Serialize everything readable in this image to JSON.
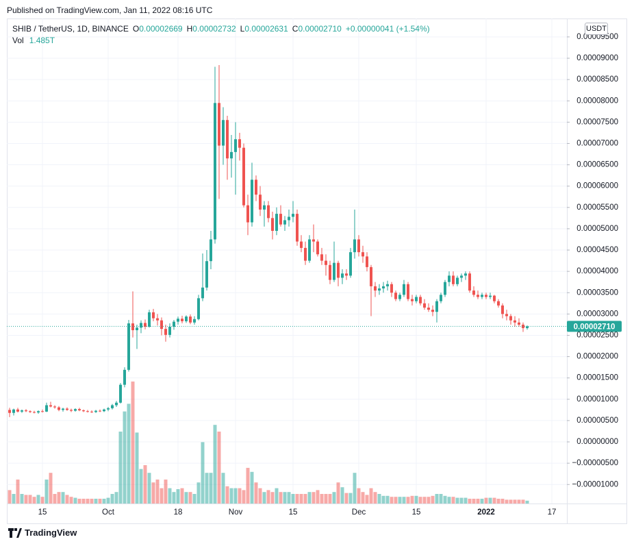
{
  "header": {
    "published": "Published on TradingView.com, Jan 11, 2022 08:16 UTC"
  },
  "chart_data": {
    "type": "candlestick",
    "symbol": "SHIB / TetherUS, 1D, BINANCE",
    "ohlc_legend": [
      {
        "key": "O",
        "value": "0.00002669"
      },
      {
        "key": "H",
        "value": "0.00002732"
      },
      {
        "key": "L",
        "value": "0.00002631"
      },
      {
        "key": "C",
        "value": "0.00002710"
      }
    ],
    "change": "+0.00000041 (+1.54%)",
    "volume_title": "Vol",
    "volume_last": "1.485T",
    "currency": "USDT",
    "last_price_label": "0.00002710",
    "up_color": "#26a69a",
    "down_color": "#ef5350",
    "grid": true,
    "categories": [
      null,
      null,
      null,
      null,
      null,
      null,
      null,
      null,
      "15",
      null,
      null,
      null,
      null,
      null,
      null,
      null,
      null,
      null,
      null,
      null,
      null,
      null,
      null,
      null,
      "Oct",
      null,
      null,
      null,
      null,
      null,
      null,
      null,
      null,
      null,
      null,
      null,
      null,
      null,
      null,
      null,
      null,
      "18",
      null,
      null,
      null,
      null,
      null,
      null,
      null,
      null,
      null,
      null,
      null,
      null,
      null,
      "Nov",
      null,
      null,
      null,
      null,
      null,
      null,
      null,
      null,
      null,
      null,
      null,
      null,
      null,
      "15",
      null,
      null,
      null,
      null,
      null,
      null,
      null,
      null,
      null,
      null,
      null,
      null,
      null,
      null,
      null,
      "Dec",
      null,
      null,
      null,
      null,
      null,
      null,
      null,
      null,
      null,
      null,
      null,
      null,
      null,
      "15",
      null,
      null,
      null,
      null,
      null,
      null,
      null,
      null,
      null,
      null,
      null,
      null,
      null,
      null,
      null,
      null,
      "2022",
      null,
      null,
      null,
      null,
      null,
      null,
      null,
      null,
      null,
      null,
      null,
      null,
      null,
      null,
      null,
      "17"
    ],
    "open": [
      7.5e-06,
      6.8e-06,
      7.6e-06,
      7.1e-06,
      7.4e-06,
      7.2e-06,
      7e-06,
      6.9e-06,
      7.2e-06,
      7.1e-06,
      8.6e-06,
      8.3e-06,
      8.1e-06,
      7.5e-06,
      7.8e-06,
      7.5e-06,
      7.3e-06,
      7.7e-06,
      7.4e-06,
      7.2e-06,
      7.1e-06,
      7e-06,
      7.3e-06,
      7.2e-06,
      7.6e-06,
      7.9e-06,
      8.6e-06,
      9.2e-06,
      1.34e-05,
      1.69e-05,
      2.78e-05,
      2.62e-05,
      2.68e-05,
      2.79e-05,
      2.7e-05,
      3.04e-05,
      2.9e-05,
      2.85e-05,
      2.65e-05,
      2.51e-05,
      2.7e-05,
      2.82e-05,
      2.89e-05,
      2.83e-05,
      2.94e-05,
      2.8e-05,
      2.88e-05,
      3.37e-05,
      3.62e-05,
      4.24e-05,
      4.75e-05,
      7.95e-05,
      6.95e-05,
      7.55e-05,
      6.65e-05,
      6.8e-05,
      7.1e-05,
      6.9e-05,
      5.55e-05,
      5.15e-05,
      6.15e-05,
      5.8e-05,
      5.45e-05,
      5.55e-05,
      5.25e-05,
      4.95e-05,
      5.35e-05,
      5.1e-05,
      5.2e-05,
      5.28e-05,
      5.35e-05,
      4.7e-05,
      4.55e-05,
      4.25e-05,
      4.75e-05,
      4.7e-05,
      4.4e-05,
      4.25e-05,
      4.15e-05,
      3.8e-05,
      4.2e-05,
      3.85e-05,
      3.95e-05,
      3.9e-05,
      4.45e-05,
      4.75e-05,
      4.45e-05,
      4.35e-05,
      4.1e-05,
      3.65e-05,
      3.55e-05,
      3.6e-05,
      3.65e-05,
      3.7e-05,
      3.5e-05,
      3.35e-05,
      3.45e-05,
      3.7e-05,
      3.35e-05,
      3.3e-05,
      3.4e-05,
      3.25e-05,
      3.15e-05,
      3.1e-05,
      3.05e-05,
      3.3e-05,
      3.45e-05,
      3.75e-05,
      3.9e-05,
      3.7e-05,
      3.85e-05,
      3.9e-05,
      3.95e-05,
      3.55e-05,
      3.45e-05,
      3.4e-05,
      3.45e-05,
      3.4e-05,
      3.43e-05,
      3.3e-05,
      3.2e-05,
      3e-05,
      2.95e-05,
      2.85e-05,
      2.8e-05,
      2.75e-05,
      2.669e-05,
      null,
      null,
      null,
      null,
      null,
      null
    ],
    "high": [
      8e-06,
      7.8e-06,
      8e-06,
      7.6e-06,
      7.7e-06,
      7.4e-06,
      7.3e-06,
      7.4e-06,
      7.6e-06,
      9.2e-06,
      9.4e-06,
      8.6e-06,
      8.4e-06,
      8e-06,
      8.1e-06,
      7.8e-06,
      7.9e-06,
      8e-06,
      7.6e-06,
      7.5e-06,
      7.4e-06,
      7.5e-06,
      7.6e-06,
      7.8e-06,
      8.2e-06,
      8.9e-06,
      9.6e-06,
      1.38e-05,
      1.75e-05,
      2.86e-05,
      3.53e-05,
      2.75e-05,
      2.85e-05,
      2.87e-05,
      3.1e-05,
      3.12e-05,
      3e-05,
      2.92e-05,
      2.75e-05,
      2.78e-05,
      2.86e-05,
      2.94e-05,
      2.96e-05,
      2.97e-05,
      2.99e-05,
      2.95e-05,
      3.45e-05,
      4.42e-05,
      4.5e-05,
      4.95e-05,
      8.8e-05,
      8.84e-05,
      7.85e-05,
      7.65e-05,
      7.2e-05,
      7.5e-05,
      7.25e-05,
      7e-05,
      5.8e-05,
      6.55e-05,
      6.25e-05,
      6e-05,
      5.65e-05,
      5.65e-05,
      5.4e-05,
      5.5e-05,
      5.55e-05,
      5.3e-05,
      5.45e-05,
      5.65e-05,
      5.45e-05,
      4.85e-05,
      4.7e-05,
      4.85e-05,
      5.1e-05,
      4.75e-05,
      4.55e-05,
      4.4e-05,
      4.25e-05,
      4.7e-05,
      4.25e-05,
      4.05e-05,
      4.05e-05,
      4.55e-05,
      5.45e-05,
      4.85e-05,
      4.6e-05,
      4.45e-05,
      4.15e-05,
      3.75e-05,
      3.7e-05,
      3.75e-05,
      3.78e-05,
      3.75e-05,
      3.55e-05,
      3.5e-05,
      3.8e-05,
      3.75e-05,
      3.45e-05,
      3.45e-05,
      3.45e-05,
      3.35e-05,
      3.25e-05,
      3.2e-05,
      3.35e-05,
      3.5e-05,
      3.8e-05,
      4e-05,
      4e-05,
      3.9e-05,
      3.95e-05,
      4e-05,
      4e-05,
      3.65e-05,
      3.55e-05,
      3.5e-05,
      3.5e-05,
      3.5e-05,
      3.45e-05,
      3.35e-05,
      3.25e-05,
      3.1e-05,
      3e-05,
      2.95e-05,
      2.9e-05,
      2.8e-05,
      2.732e-05,
      null,
      null,
      null,
      null,
      null,
      null
    ],
    "low": [
      5.8e-06,
      6.2e-06,
      6.9e-06,
      6.8e-06,
      7e-06,
      6.8e-06,
      6.7e-06,
      6.6e-06,
      6.9e-06,
      7e-06,
      8.1e-06,
      7.8e-06,
      7.2e-06,
      7.1e-06,
      7.3e-06,
      7e-06,
      7.1e-06,
      7.2e-06,
      7e-06,
      6.9e-06,
      6.8e-06,
      6.8e-06,
      7e-06,
      7e-06,
      7.2e-06,
      7.6e-06,
      8.2e-06,
      9e-06,
      1.28e-05,
      1.65e-05,
      2.45e-05,
      2.18e-05,
      2.55e-05,
      2.64e-05,
      2.68e-05,
      2.83e-05,
      2.73e-05,
      2.5e-05,
      2.35e-05,
      2.45e-05,
      2.63e-05,
      2.75e-05,
      2.78e-05,
      2.79e-05,
      2.76e-05,
      2.75e-05,
      2.85e-05,
      3.3e-05,
      3.55e-05,
      4.05e-05,
      4.65e-05,
      5.7e-05,
      6.5e-05,
      6.15e-05,
      6.2e-05,
      5.8e-05,
      6.6e-05,
      5.5e-05,
      4.85e-05,
      5.05e-05,
      5.65e-05,
      5.3e-05,
      5.05e-05,
      5.15e-05,
      4.75e-05,
      4.85e-05,
      5.05e-05,
      4.95e-05,
      5.05e-05,
      5.15e-05,
      4.6e-05,
      4.45e-05,
      4.15e-05,
      4.2e-05,
      4.45e-05,
      4.35e-05,
      4.15e-05,
      3.9e-05,
      3.7e-05,
      3.75e-05,
      3.65e-05,
      3.7e-05,
      3.8e-05,
      3.85e-05,
      4.3e-05,
      4.35e-05,
      4.2e-05,
      4e-05,
      2.95e-05,
      3.4e-05,
      3.45e-05,
      3.5e-05,
      3.55e-05,
      3.4e-05,
      3.3e-05,
      3.3e-05,
      3.4e-05,
      3.3e-05,
      3.2e-05,
      3.25e-05,
      3.2e-05,
      3.1e-05,
      3.05e-05,
      2.95e-05,
      2.8e-05,
      3.25e-05,
      3.4e-05,
      3.65e-05,
      3.65e-05,
      3.65e-05,
      3.75e-05,
      3.8e-05,
      3.5e-05,
      3.4e-05,
      3.35e-05,
      3.35e-05,
      3.35e-05,
      3.35e-05,
      3.25e-05,
      3.15e-05,
      2.9e-05,
      2.85e-05,
      2.75e-05,
      2.7e-05,
      2.7e-05,
      2.58e-05,
      2.631e-05,
      null,
      null,
      null,
      null,
      null,
      null
    ],
    "close": [
      6.8e-06,
      7.6e-06,
      7.1e-06,
      7.4e-06,
      7.2e-06,
      7e-06,
      6.9e-06,
      7.2e-06,
      7.1e-06,
      8.6e-06,
      8.3e-06,
      8.1e-06,
      7.5e-06,
      7.8e-06,
      7.5e-06,
      7.3e-06,
      7.7e-06,
      7.4e-06,
      7.2e-06,
      7.1e-06,
      7e-06,
      7.3e-06,
      7.2e-06,
      7.6e-06,
      7.9e-06,
      8.6e-06,
      9.2e-06,
      1.34e-05,
      1.69e-05,
      2.78e-05,
      2.62e-05,
      2.68e-05,
      2.79e-05,
      2.7e-05,
      3.04e-05,
      2.9e-05,
      2.85e-05,
      2.65e-05,
      2.51e-05,
      2.7e-05,
      2.82e-05,
      2.89e-05,
      2.83e-05,
      2.94e-05,
      2.8e-05,
      2.88e-05,
      3.37e-05,
      3.62e-05,
      4.24e-05,
      4.75e-05,
      7.95e-05,
      6.95e-05,
      7.55e-05,
      6.65e-05,
      6.8e-05,
      7.1e-05,
      6.9e-05,
      5.55e-05,
      5.15e-05,
      6.15e-05,
      5.8e-05,
      5.45e-05,
      5.55e-05,
      5.25e-05,
      4.95e-05,
      5.35e-05,
      5.1e-05,
      5.2e-05,
      5.28e-05,
      5.35e-05,
      4.7e-05,
      4.55e-05,
      4.25e-05,
      4.75e-05,
      4.7e-05,
      4.4e-05,
      4.25e-05,
      4.15e-05,
      3.8e-05,
      4.2e-05,
      3.85e-05,
      3.95e-05,
      3.9e-05,
      4.45e-05,
      4.75e-05,
      4.45e-05,
      4.35e-05,
      4.1e-05,
      3.65e-05,
      3.55e-05,
      3.6e-05,
      3.65e-05,
      3.7e-05,
      3.5e-05,
      3.35e-05,
      3.45e-05,
      3.7e-05,
      3.35e-05,
      3.3e-05,
      3.4e-05,
      3.25e-05,
      3.15e-05,
      3.1e-05,
      3.05e-05,
      3.3e-05,
      3.45e-05,
      3.75e-05,
      3.9e-05,
      3.7e-05,
      3.85e-05,
      3.9e-05,
      3.95e-05,
      3.55e-05,
      3.45e-05,
      3.4e-05,
      3.45e-05,
      3.4e-05,
      3.43e-05,
      3.3e-05,
      3.2e-05,
      3e-05,
      2.95e-05,
      2.85e-05,
      2.8e-05,
      2.75e-05,
      2.669e-05,
      2.71e-05,
      null,
      null,
      null,
      null,
      null,
      null
    ],
    "volume": [
      7,
      5,
      12.5,
      5,
      4.5,
      4.5,
      3.5,
      4.5,
      3.5,
      12.5,
      16,
      5,
      6,
      6,
      4.5,
      3.5,
      3,
      2.5,
      2.5,
      2.5,
      2.5,
      2.5,
      2.5,
      2.5,
      3,
      5,
      6,
      37.5,
      48,
      52,
      63.6,
      37,
      18,
      20,
      16,
      11,
      12.5,
      8,
      12.5,
      8,
      6,
      7.5,
      8,
      6,
      6,
      5,
      11,
      32,
      16,
      16,
      41,
      37.5,
      16,
      9,
      8,
      8,
      8,
      7,
      18.6,
      16.5,
      11,
      8,
      6,
      7,
      6,
      8,
      6,
      6,
      6,
      5,
      5,
      5,
      5,
      6,
      6,
      7,
      5,
      5,
      5,
      6,
      11,
      8.5,
      5.5,
      5.5,
      16,
      8,
      6,
      4.5,
      8,
      6,
      5,
      4,
      4,
      3.5,
      3.5,
      3.5,
      3.5,
      3.5,
      4,
      4,
      3.5,
      3.5,
      3.5,
      4,
      5,
      5,
      4,
      3.5,
      3.5,
      3,
      3,
      3,
      2.5,
      2.5,
      2.5,
      2.5,
      3,
      3,
      3,
      2.5,
      2.5,
      2,
      2,
      2,
      2,
      2,
      1.485,
      null,
      null,
      null,
      null,
      null,
      null
    ],
    "ylim": [
      -1.446e-05,
      9.932e-05
    ],
    "yticks": [
      {
        "value": 9.5e-05,
        "label": "0.00009500"
      },
      {
        "value": 9e-05,
        "label": "0.00009000"
      },
      {
        "value": 8.5e-05,
        "label": "0.00008500"
      },
      {
        "value": 8e-05,
        "label": "0.00008000"
      },
      {
        "value": 7.5e-05,
        "label": "0.00007500"
      },
      {
        "value": 7e-05,
        "label": "0.00007000"
      },
      {
        "value": 6.5e-05,
        "label": "0.00006500"
      },
      {
        "value": 6e-05,
        "label": "0.00006000"
      },
      {
        "value": 5.5e-05,
        "label": "0.00005500"
      },
      {
        "value": 5e-05,
        "label": "0.00005000"
      },
      {
        "value": 4.5e-05,
        "label": "0.00004500"
      },
      {
        "value": 4e-05,
        "label": "0.00004000"
      },
      {
        "value": 3.5e-05,
        "label": "0.00003500"
      },
      {
        "value": 3e-05,
        "label": "0.00003000"
      },
      {
        "value": 2.5e-05,
        "label": "0.00002500"
      },
      {
        "value": 2e-05,
        "label": "0.00002000"
      },
      {
        "value": 1.5e-05,
        "label": "0.00001500"
      },
      {
        "value": 1e-05,
        "label": "0.00001000"
      },
      {
        "value": 5e-06,
        "label": "0.00000500"
      },
      {
        "value": 0,
        "label": "0.00000000"
      },
      {
        "value": -5e-06,
        "label": "−0.00000500"
      },
      {
        "value": -1e-05,
        "label": "−0.00001000"
      }
    ]
  },
  "footer": {
    "brand": "TradingView"
  }
}
